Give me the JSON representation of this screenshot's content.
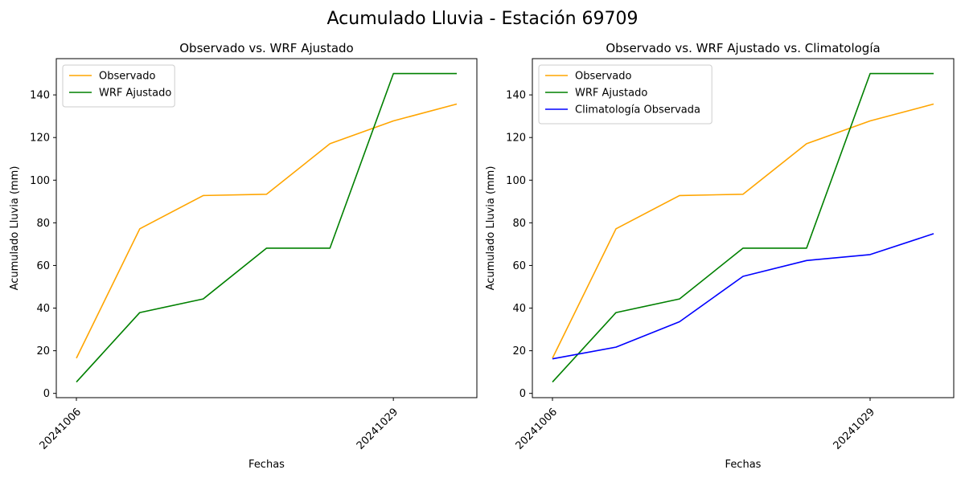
{
  "figure": {
    "suptitle": "Acumulado Lluvia - Estación 69709"
  },
  "colors": {
    "observado": "#ffa500",
    "wrf": "#008000",
    "clima": "#0000ff"
  },
  "chart_data": [
    {
      "type": "line",
      "title": "Observado vs. WRF Ajustado",
      "xlabel": "Fechas",
      "ylabel": "Acumulado Lluvia (mm)",
      "x_tick_labels": [
        "20241006",
        "20241029"
      ],
      "x_tick_index": [
        0,
        5
      ],
      "ylim": [
        -2,
        157
      ],
      "y_ticks": [
        0,
        20,
        40,
        60,
        80,
        100,
        120,
        140
      ],
      "legend_position": "upper-left",
      "series": [
        {
          "name": "Observado",
          "color": "#ffa500",
          "values": [
            16.5,
            77.2,
            92.8,
            93.4,
            117.1,
            127.8,
            135.7
          ]
        },
        {
          "name": "WRF Ajustado",
          "color": "#008000",
          "values": [
            5.3,
            37.9,
            44.3,
            68.1,
            68.1,
            150.0,
            150.0
          ]
        }
      ]
    },
    {
      "type": "line",
      "title": "Observado vs. WRF Ajustado vs. Climatología",
      "xlabel": "Fechas",
      "ylabel": "Acumulado Lluvia (mm)",
      "x_tick_labels": [
        "20241006",
        "20241029"
      ],
      "x_tick_index": [
        0,
        5
      ],
      "ylim": [
        -2,
        157
      ],
      "y_ticks": [
        0,
        20,
        40,
        60,
        80,
        100,
        120,
        140
      ],
      "legend_position": "upper-left",
      "series": [
        {
          "name": "Observado",
          "color": "#ffa500",
          "values": [
            16.5,
            77.2,
            92.8,
            93.4,
            117.1,
            127.8,
            135.7
          ]
        },
        {
          "name": "WRF Ajustado",
          "color": "#008000",
          "values": [
            5.3,
            37.9,
            44.3,
            68.1,
            68.1,
            150.0,
            150.0
          ]
        },
        {
          "name": "Climatología Observada",
          "color": "#0000ff",
          "values": [
            16.2,
            21.7,
            33.6,
            54.9,
            62.3,
            65.1,
            74.9
          ]
        }
      ]
    }
  ]
}
